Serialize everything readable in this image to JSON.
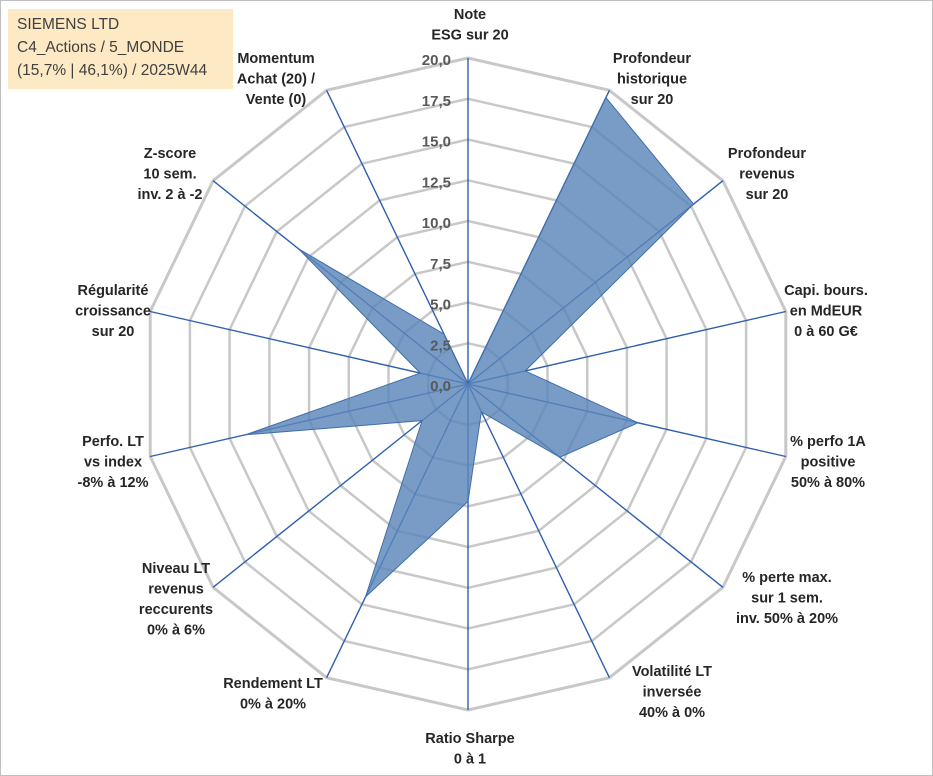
{
  "info": {
    "company": "SIEMENS LTD",
    "category": "C4_Actions / 5_MONDE",
    "stats": "(15,7% | 46,1%) / 2025W44"
  },
  "colors": {
    "grid": "#c8c8c8",
    "axis": "#2f5fad",
    "fill": "#5b86bb",
    "info_bg": "#fde9c3"
  },
  "chart_data": {
    "type": "radar",
    "title": "",
    "rmin": 0,
    "rmax": 20,
    "ticks": [
      "0,0",
      "2,5",
      "5,0",
      "7,5",
      "10,0",
      "12,5",
      "15,0",
      "17,5",
      "20,0"
    ],
    "axes": [
      {
        "label": [
          "Note",
          "ESG sur 20"
        ],
        "value": 0
      },
      {
        "label": [
          "Profondeur",
          "historique",
          "sur 20"
        ],
        "value": 19.5
      },
      {
        "label": [
          "Profondeur",
          "revenus",
          "sur 20"
        ],
        "value": 17.7
      },
      {
        "label": [
          "Capi. bours.",
          "en MdEUR",
          "0 à 60 G€"
        ],
        "value": 3.6
      },
      {
        "label": [
          "% perfo 1A",
          "positive",
          "50% à 80%"
        ],
        "value": 10.7
      },
      {
        "label": [
          "% perte max.",
          "sur 1 sem.",
          "inv. 50% à 20%"
        ],
        "value": 7.2
      },
      {
        "label": [
          "Volatilité LT",
          "inversée",
          "40% à 0%"
        ],
        "value": 1.9
      },
      {
        "label": [
          "Ratio Sharpe",
          "0 à 1"
        ],
        "value": 7.2
      },
      {
        "label": [
          "Rendement LT",
          "0% à 20%"
        ],
        "value": 14.5
      },
      {
        "label": [
          "Niveau LT",
          "revenus",
          "reccurents",
          "0% à 6%"
        ],
        "value": 3.6
      },
      {
        "label": [
          "Perfo. LT",
          "vs index",
          "-8% à 12%"
        ],
        "value": 14.0
      },
      {
        "label": [
          "Régularité",
          "croissance",
          "sur 20"
        ],
        "value": 3.0
      },
      {
        "label": [
          "Z-score",
          "10 sem.",
          "inv. 2 à -2"
        ],
        "value": 13.3
      },
      {
        "label": [
          "Momentum",
          "Achat (20) /",
          "Vente (0)"
        ],
        "value": 3.4
      }
    ]
  }
}
